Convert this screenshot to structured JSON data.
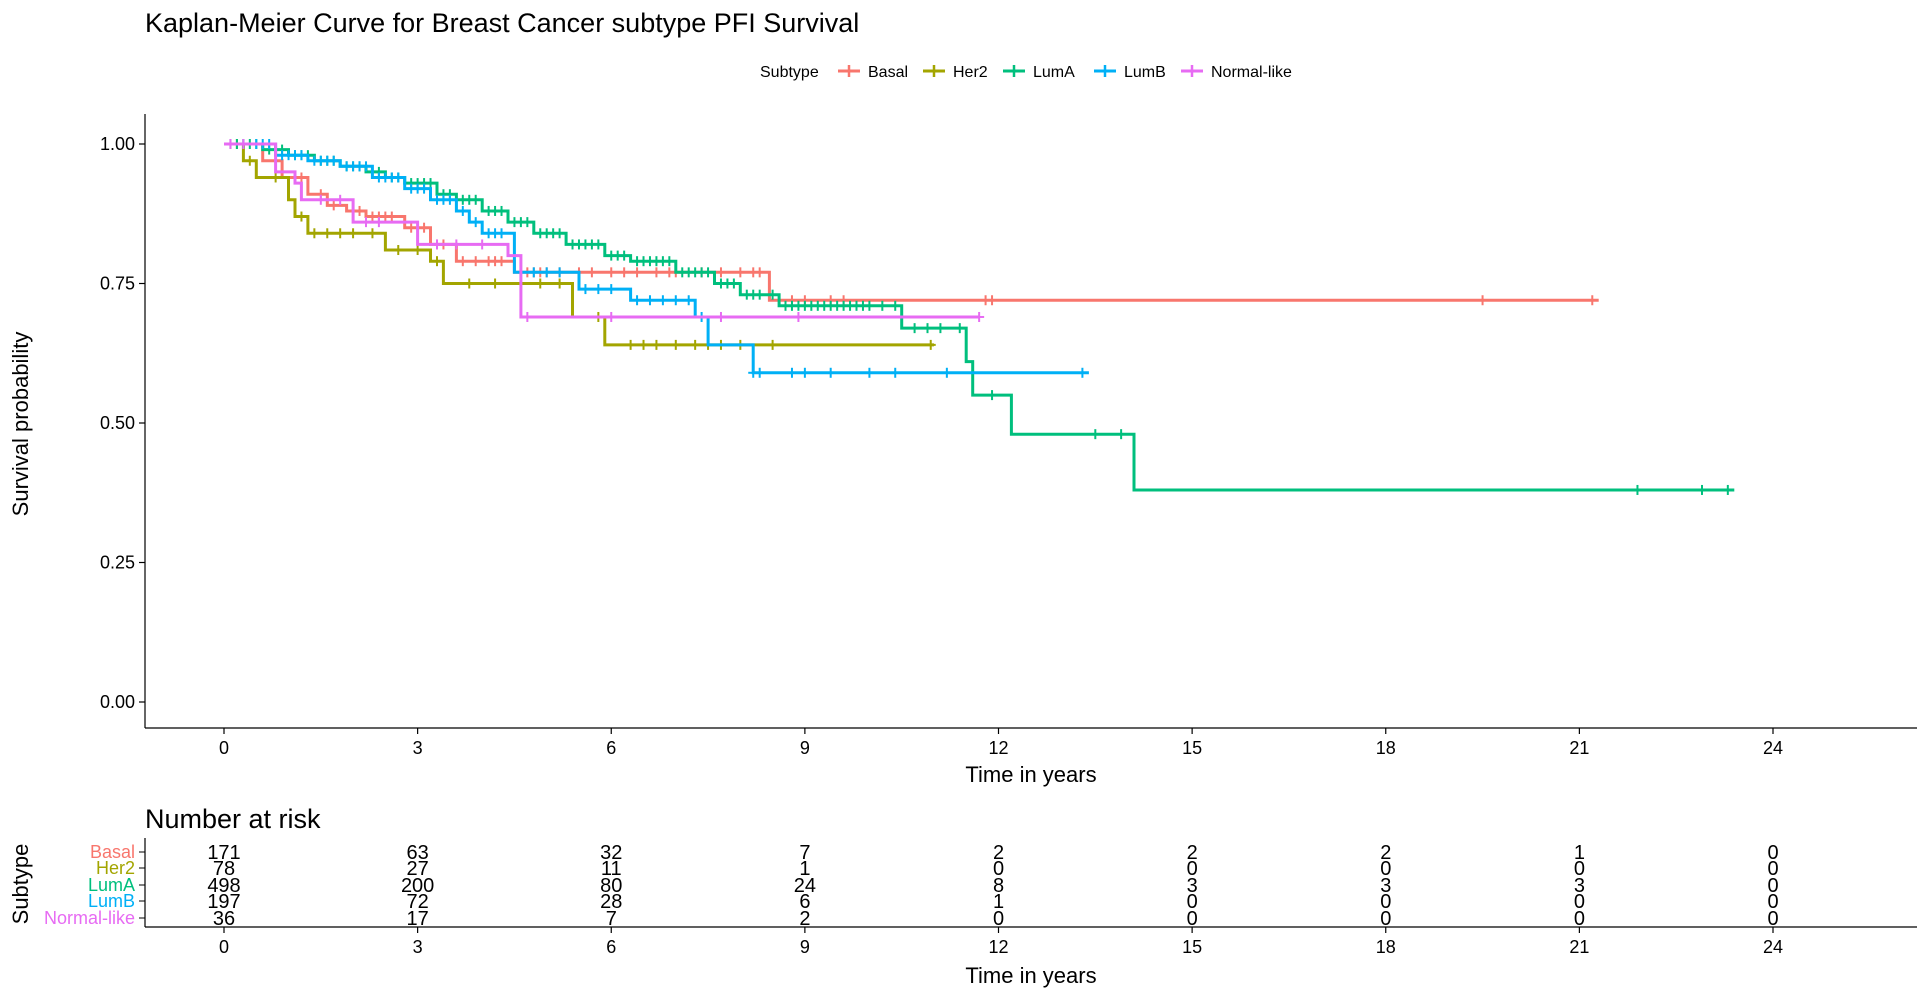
{
  "chart_data": {
    "type": "line",
    "title": "Kaplan-Meier Curve for Breast Cancer subtype PFI Survival",
    "xlabel": "Time in years",
    "ylabel": "Survival probability",
    "xlim": [
      0,
      24
    ],
    "ylim": [
      0,
      1
    ],
    "x_ticks": [
      "0",
      "3",
      "6",
      "9",
      "12",
      "15",
      "18",
      "21",
      "24"
    ],
    "y_ticks": [
      "0.00",
      "0.25",
      "0.50",
      "0.75",
      "1.00"
    ],
    "grid": false,
    "legend": {
      "title": "Subtype",
      "position": "top"
    },
    "series": [
      {
        "name": "Basal",
        "color": "#F8766D",
        "steps": [
          [
            0,
            1.0
          ],
          [
            0.6,
            0.97
          ],
          [
            0.9,
            0.94
          ],
          [
            1.3,
            0.91
          ],
          [
            1.6,
            0.89
          ],
          [
            1.9,
            0.88
          ],
          [
            2.2,
            0.87
          ],
          [
            2.8,
            0.85
          ],
          [
            3.2,
            0.82
          ],
          [
            3.6,
            0.79
          ],
          [
            4.5,
            0.77
          ],
          [
            8.45,
            0.72
          ],
          [
            21.3,
            0.72
          ]
        ],
        "censored": [
          0.8,
          1.2,
          1.5,
          1.7,
          2.0,
          2.1,
          2.3,
          2.4,
          2.5,
          2.6,
          2.9,
          3.0,
          3.1,
          3.3,
          3.4,
          3.7,
          3.9,
          4.1,
          4.2,
          4.3,
          4.7,
          4.8,
          4.9,
          5.0,
          5.2,
          5.5,
          5.7,
          6.0,
          6.2,
          6.4,
          6.7,
          6.9,
          7.0,
          7.4,
          7.7,
          8.0,
          8.2,
          8.3,
          8.6,
          8.8,
          9.0,
          9.4,
          9.6,
          11.8,
          11.9,
          19.5,
          21.2
        ]
      },
      {
        "name": "Her2",
        "color": "#A3A500",
        "steps": [
          [
            0,
            1.0
          ],
          [
            0.3,
            0.97
          ],
          [
            0.5,
            0.94
          ],
          [
            1.0,
            0.9
          ],
          [
            1.1,
            0.87
          ],
          [
            1.3,
            0.84
          ],
          [
            2.5,
            0.81
          ],
          [
            3.2,
            0.79
          ],
          [
            3.4,
            0.75
          ],
          [
            5.4,
            0.69
          ],
          [
            5.9,
            0.64
          ],
          [
            11.0,
            0.64
          ]
        ],
        "censored": [
          0.2,
          0.4,
          0.8,
          1.2,
          1.4,
          1.6,
          1.8,
          2.0,
          2.3,
          2.7,
          3.0,
          3.3,
          3.8,
          4.2,
          4.6,
          4.9,
          5.2,
          5.8,
          6.3,
          6.5,
          6.7,
          7.0,
          7.3,
          7.5,
          7.7,
          8.0,
          8.5,
          10.95
        ]
      },
      {
        "name": "LumA",
        "color": "#00BF7D",
        "steps": [
          [
            0,
            1.0
          ],
          [
            0.6,
            0.99
          ],
          [
            1.0,
            0.98
          ],
          [
            1.4,
            0.97
          ],
          [
            1.8,
            0.96
          ],
          [
            2.2,
            0.95
          ],
          [
            2.5,
            0.94
          ],
          [
            2.8,
            0.93
          ],
          [
            3.3,
            0.91
          ],
          [
            3.6,
            0.9
          ],
          [
            4.0,
            0.88
          ],
          [
            4.4,
            0.86
          ],
          [
            4.8,
            0.84
          ],
          [
            5.3,
            0.82
          ],
          [
            5.9,
            0.8
          ],
          [
            6.3,
            0.79
          ],
          [
            7.0,
            0.77
          ],
          [
            7.6,
            0.75
          ],
          [
            8.0,
            0.73
          ],
          [
            8.6,
            0.71
          ],
          [
            10.5,
            0.67
          ],
          [
            11.5,
            0.61
          ],
          [
            11.6,
            0.55
          ],
          [
            12.2,
            0.48
          ],
          [
            14.1,
            0.38
          ],
          [
            23.4,
            0.38
          ]
        ],
        "censored": [
          0.1,
          0.2,
          0.3,
          0.4,
          0.5,
          0.7,
          0.8,
          0.9,
          1.1,
          1.2,
          1.3,
          1.5,
          1.6,
          1.7,
          1.9,
          2.0,
          2.1,
          2.3,
          2.4,
          2.6,
          2.7,
          2.9,
          3.0,
          3.1,
          3.2,
          3.4,
          3.5,
          3.7,
          3.8,
          3.9,
          4.1,
          4.2,
          4.3,
          4.5,
          4.6,
          4.7,
          4.9,
          5.0,
          5.1,
          5.2,
          5.4,
          5.5,
          5.6,
          5.7,
          5.8,
          6.0,
          6.1,
          6.2,
          6.4,
          6.5,
          6.6,
          6.7,
          6.8,
          6.9,
          7.1,
          7.2,
          7.3,
          7.4,
          7.5,
          7.7,
          7.8,
          7.9,
          8.1,
          8.2,
          8.3,
          8.5,
          8.7,
          8.8,
          8.9,
          9.0,
          9.1,
          9.2,
          9.3,
          9.4,
          9.5,
          9.6,
          9.7,
          9.8,
          9.9,
          10.0,
          10.2,
          10.4,
          10.7,
          10.9,
          11.1,
          11.4,
          11.9,
          13.5,
          13.9,
          21.9,
          22.9,
          23.3
        ]
      },
      {
        "name": "LumB",
        "color": "#00B0F6",
        "steps": [
          [
            0,
            1.0
          ],
          [
            0.8,
            0.98
          ],
          [
            1.3,
            0.97
          ],
          [
            1.8,
            0.96
          ],
          [
            2.3,
            0.94
          ],
          [
            2.8,
            0.92
          ],
          [
            3.2,
            0.9
          ],
          [
            3.6,
            0.88
          ],
          [
            3.8,
            0.86
          ],
          [
            4.0,
            0.84
          ],
          [
            4.5,
            0.77
          ],
          [
            5.5,
            0.74
          ],
          [
            6.3,
            0.72
          ],
          [
            7.3,
            0.69
          ],
          [
            7.5,
            0.64
          ],
          [
            8.2,
            0.59
          ],
          [
            13.4,
            0.59
          ]
        ],
        "censored": [
          0.3,
          0.5,
          0.6,
          0.7,
          0.9,
          1.0,
          1.1,
          1.2,
          1.4,
          1.5,
          1.6,
          1.7,
          1.9,
          2.0,
          2.1,
          2.2,
          2.4,
          2.5,
          2.6,
          2.7,
          2.9,
          3.0,
          3.1,
          3.3,
          3.4,
          3.5,
          3.7,
          3.9,
          4.1,
          4.2,
          4.3,
          4.6,
          4.8,
          5.0,
          5.2,
          5.6,
          5.8,
          6.0,
          6.4,
          6.6,
          6.8,
          7.0,
          7.2,
          7.4,
          8.2,
          8.3,
          8.8,
          9.0,
          9.4,
          10.0,
          10.4,
          11.2,
          13.3
        ]
      },
      {
        "name": "Normal-like",
        "color": "#E76BF3",
        "steps": [
          [
            0,
            1.0
          ],
          [
            0.8,
            0.95
          ],
          [
            1.1,
            0.93
          ],
          [
            1.2,
            0.9
          ],
          [
            2.0,
            0.86
          ],
          [
            3.0,
            0.82
          ],
          [
            4.4,
            0.8
          ],
          [
            4.6,
            0.69
          ],
          [
            11.7,
            0.69
          ]
        ],
        "censored": [
          0.1,
          0.3,
          1.5,
          1.8,
          2.2,
          2.4,
          3.3,
          3.6,
          4.0,
          4.7,
          6.0,
          7.7,
          8.9,
          11.7
        ]
      }
    ],
    "risk_table": {
      "title": "Number at risk",
      "ylabel": "Subtype",
      "xlabel": "Time in years",
      "times": [
        "0",
        "3",
        "6",
        "9",
        "12",
        "15",
        "18",
        "21",
        "24"
      ],
      "rows": [
        {
          "name": "Basal",
          "color": "#F8766D",
          "values": [
            "171",
            "63",
            "32",
            "7",
            "2",
            "2",
            "2",
            "1",
            "0"
          ]
        },
        {
          "name": "Her2",
          "color": "#A3A500",
          "values": [
            "78",
            "27",
            "11",
            "1",
            "0",
            "0",
            "0",
            "0",
            "0"
          ]
        },
        {
          "name": "LumA",
          "color": "#00BF7D",
          "values": [
            "498",
            "200",
            "80",
            "24",
            "8",
            "3",
            "3",
            "3",
            "0"
          ]
        },
        {
          "name": "LumB",
          "color": "#00B0F6",
          "values": [
            "197",
            "72",
            "28",
            "6",
            "1",
            "0",
            "0",
            "0",
            "0"
          ]
        },
        {
          "name": "Normal-like",
          "color": "#E76BF3",
          "values": [
            "36",
            "17",
            "7",
            "2",
            "0",
            "0",
            "0",
            "0",
            "0"
          ]
        }
      ]
    }
  }
}
